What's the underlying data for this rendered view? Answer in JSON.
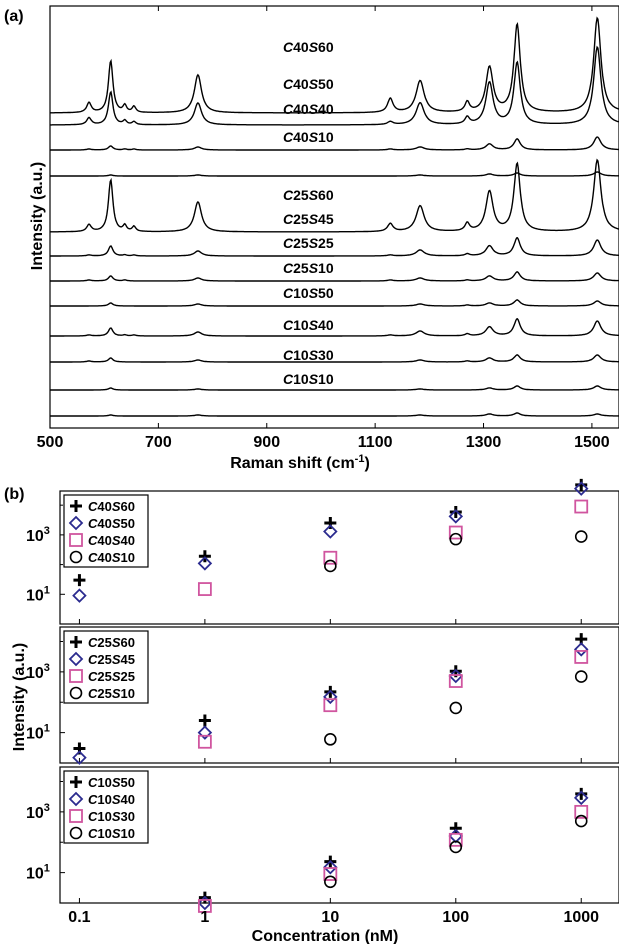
{
  "chart_data": [
    {
      "type": "line",
      "panel_label": "(a)",
      "xlabel": "Raman shift (cm",
      "xlabel_sup": "-1",
      "xlabel_tail": ")",
      "ylabel": "Intensity (a.u.)",
      "xlim": [
        500,
        1550
      ],
      "x_ticks": [
        "500",
        "700",
        "900",
        "1100",
        "1300",
        "1500"
      ],
      "grid": false,
      "peaks": [
        {
          "pos": 572,
          "width": 5
        },
        {
          "pos": 612,
          "width": 5
        },
        {
          "pos": 638,
          "width": 4
        },
        {
          "pos": 655,
          "width": 4
        },
        {
          "pos": 773,
          "width": 8
        },
        {
          "pos": 1128,
          "width": 6
        },
        {
          "pos": 1183,
          "width": 9
        },
        {
          "pos": 1270,
          "width": 5
        },
        {
          "pos": 1311,
          "width": 8
        },
        {
          "pos": 1362,
          "width": 7
        },
        {
          "pos": 1510,
          "width": 8
        }
      ],
      "series": [
        {
          "label_a": "C",
          "label_b": "40",
          "label_c": "S",
          "label_d": "60",
          "offset": 12,
          "intensities": [
            0.1,
            0.52,
            0.07,
            0.06,
            0.38,
            0.14,
            0.32,
            0.1,
            0.45,
            0.88,
            0.95
          ]
        },
        {
          "label_a": "C",
          "label_b": "40",
          "label_c": "S",
          "label_d": "50",
          "offset": 11,
          "intensities": [
            0.07,
            0.33,
            0.04,
            0.03,
            0.22,
            0.03,
            0.22,
            0.07,
            0.42,
            0.62,
            0.78
          ]
        },
        {
          "label_a": "C",
          "label_b": "40",
          "label_c": "S",
          "label_d": "40",
          "offset": 10,
          "intensities": [
            0.01,
            0.04,
            0.01,
            0.01,
            0.03,
            0.01,
            0.03,
            0.01,
            0.06,
            0.11,
            0.13
          ]
        },
        {
          "label_a": "C",
          "label_b": "40",
          "label_c": "S",
          "label_d": "10",
          "offset": 9,
          "intensities": [
            0.0,
            0.01,
            0.0,
            0.0,
            0.01,
            0.0,
            0.01,
            0.0,
            0.02,
            0.03,
            0.04
          ]
        },
        {
          "label_a": "C",
          "label_b": "25",
          "label_c": "S",
          "label_d": "60",
          "offset": 8,
          "intensities": [
            0.07,
            0.52,
            0.06,
            0.05,
            0.3,
            0.08,
            0.26,
            0.08,
            0.4,
            0.68,
            0.72
          ]
        },
        {
          "label_a": "C",
          "label_b": "25",
          "label_c": "S",
          "label_d": "45",
          "offset": 7,
          "intensities": [
            0.01,
            0.1,
            0.01,
            0.01,
            0.05,
            0.01,
            0.06,
            0.02,
            0.1,
            0.18,
            0.16
          ]
        },
        {
          "label_a": "C",
          "label_b": "25",
          "label_c": "S",
          "label_d": "25",
          "offset": 6,
          "intensities": [
            0.01,
            0.05,
            0.01,
            0.0,
            0.03,
            0.01,
            0.03,
            0.01,
            0.05,
            0.09,
            0.08
          ]
        },
        {
          "label_a": "C",
          "label_b": "25",
          "label_c": "S",
          "label_d": "10",
          "offset": 5,
          "intensities": [
            0.0,
            0.03,
            0.0,
            0.0,
            0.02,
            0.0,
            0.02,
            0.01,
            0.03,
            0.06,
            0.05
          ]
        },
        {
          "label_a": "C",
          "label_b": "10",
          "label_c": "S",
          "label_d": "50",
          "offset": 4,
          "intensities": [
            0.01,
            0.08,
            0.01,
            0.01,
            0.04,
            0.01,
            0.05,
            0.02,
            0.09,
            0.17,
            0.15
          ]
        },
        {
          "label_a": "C",
          "label_b": "10",
          "label_c": "S",
          "label_d": "40",
          "offset": 3,
          "intensities": [
            0.01,
            0.04,
            0.0,
            0.0,
            0.02,
            0.0,
            0.02,
            0.01,
            0.04,
            0.07,
            0.07
          ]
        },
        {
          "label_a": "C",
          "label_b": "10",
          "label_c": "S",
          "label_d": "30",
          "offset": 2,
          "intensities": [
            0.0,
            0.02,
            0.0,
            0.0,
            0.01,
            0.0,
            0.01,
            0.0,
            0.02,
            0.04,
            0.04
          ]
        },
        {
          "label_a": "C",
          "label_b": "10",
          "label_c": "S",
          "label_d": "10",
          "offset": 1,
          "intensities": [
            0.0,
            0.01,
            0.0,
            0.0,
            0.01,
            0.0,
            0.01,
            0.0,
            0.02,
            0.03,
            0.02
          ]
        }
      ]
    },
    {
      "type": "scatter",
      "panel_label": "(b)",
      "xlabel": "Concentration (nM)",
      "ylabel": "Intensity (a.u.)",
      "xscale": "log",
      "yscale": "log",
      "x": [
        0.1,
        1,
        10,
        100,
        1000
      ],
      "x_ticks": [
        "0.1",
        "1",
        "10",
        "100",
        "1000"
      ],
      "y_tick_bases": [
        "10",
        "10"
      ],
      "y_tick_exps": [
        "1",
        "3"
      ],
      "ylim": [
        1,
        30000
      ],
      "legend_position": "top-left",
      "grid": false,
      "subplots": [
        {
          "series": [
            {
              "label_a": "C",
              "label_b": "40",
              "label_c": "S",
              "label_d": "60",
              "marker": "plus",
              "color": "#000000",
              "values": [
                30,
                190,
                2500,
                5900,
                48000
              ]
            },
            {
              "label_a": "C",
              "label_b": "40",
              "label_c": "S",
              "label_d": "50",
              "marker": "diamond",
              "color": "#2b2b8f",
              "values": [
                9,
                110,
                1300,
                4200,
                36000
              ]
            },
            {
              "label_a": "C",
              "label_b": "40",
              "label_c": "S",
              "label_d": "40",
              "marker": "square",
              "color": "#d0559f",
              "values": [
                null,
                15,
                170,
                1200,
                9000
              ]
            },
            {
              "label_a": "C",
              "label_b": "40",
              "label_c": "S",
              "label_d": "10",
              "marker": "circle",
              "color": "#000000",
              "values": [
                null,
                null,
                90,
                720,
                880
              ]
            }
          ]
        },
        {
          "series": [
            {
              "label_a": "C",
              "label_b": "25",
              "label_c": "S",
              "label_d": "60",
              "marker": "plus",
              "color": "#000000",
              "values": [
                3,
                25,
                220,
                1050,
                12000
              ]
            },
            {
              "label_a": "C",
              "label_b": "25",
              "label_c": "S",
              "label_d": "45",
              "marker": "diamond",
              "color": "#2b2b8f",
              "values": [
                1.5,
                10,
                150,
                730,
                5500
              ]
            },
            {
              "label_a": "C",
              "label_b": "25",
              "label_c": "S",
              "label_d": "25",
              "marker": "square",
              "color": "#d0559f",
              "values": [
                null,
                5,
                80,
                500,
                3100
              ]
            },
            {
              "label_a": "C",
              "label_b": "25",
              "label_c": "S",
              "label_d": "10",
              "marker": "circle",
              "color": "#000000",
              "values": [
                null,
                null,
                6,
                65,
                700
              ]
            }
          ]
        },
        {
          "series": [
            {
              "label_a": "C",
              "label_b": "10",
              "label_c": "S",
              "label_d": "50",
              "marker": "plus",
              "color": "#000000",
              "values": [
                null,
                1.5,
                23,
                290,
                3900
              ]
            },
            {
              "label_a": "C",
              "label_b": "10",
              "label_c": "S",
              "label_d": "40",
              "marker": "diamond",
              "color": "#2b2b8f",
              "values": [
                null,
                1.0,
                15,
                160,
                2900
              ]
            },
            {
              "label_a": "C",
              "label_b": "10",
              "label_c": "S",
              "label_d": "30",
              "marker": "square",
              "color": "#d0559f",
              "values": [
                null,
                0.8,
                9,
                120,
                1000
              ]
            },
            {
              "label_a": "C",
              "label_b": "10",
              "label_c": "S",
              "label_d": "10",
              "marker": "circle",
              "color": "#000000",
              "values": [
                null,
                null,
                5,
                70,
                500
              ]
            }
          ]
        }
      ]
    }
  ]
}
